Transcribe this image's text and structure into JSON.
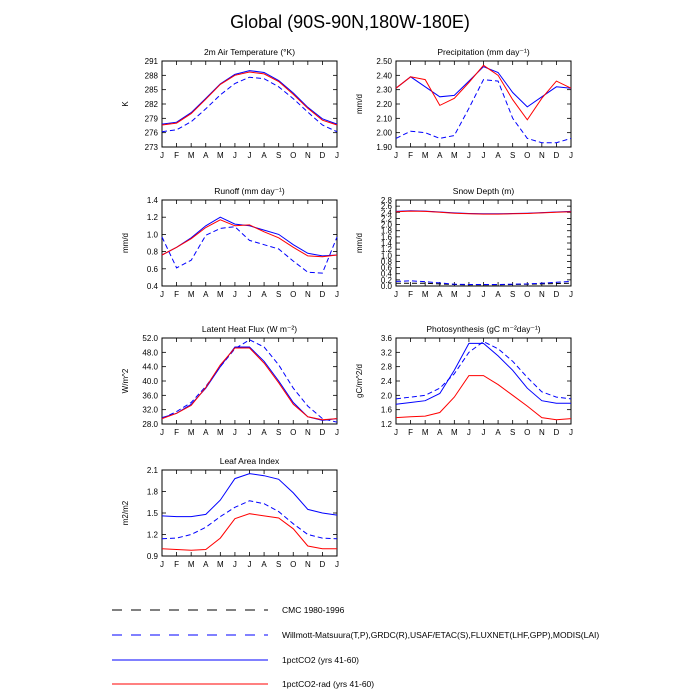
{
  "page": {
    "title": "Global (90S-90N,180W-180E)"
  },
  "months": [
    "J",
    "F",
    "M",
    "A",
    "M",
    "J",
    "J",
    "A",
    "S",
    "O",
    "N",
    "D",
    "J"
  ],
  "series_styles": [
    {
      "name": "CMC 1980-1996",
      "color": "#000000",
      "dash": true
    },
    {
      "name": "Willmott-Matsuura(T,P),GRDC(R),USAF/ETAC(S),FLUXNET(LHF,GPP),MODIS(LAI)",
      "color": "#0000ff",
      "dash": true
    },
    {
      "name": "1pctCO2 (yrs 41-60)",
      "color": "#0000ff",
      "dash": false
    },
    {
      "name": "1pctCO2-rad (yrs 41-60)",
      "color": "#ff0000",
      "dash": false
    }
  ],
  "chart_data": [
    {
      "type": "line",
      "title": "2m Air Temperature (°K)",
      "ylabel": "K",
      "ylim": [
        273,
        291
      ],
      "yticks": [
        "273",
        "276",
        "279",
        "282",
        "285",
        "288",
        "291"
      ],
      "series": [
        {
          "style": 1,
          "values": [
            276.2,
            276.6,
            278.3,
            281.0,
            283.9,
            286.3,
            287.6,
            287.3,
            285.6,
            283.1,
            280.3,
            277.6,
            276.2
          ]
        },
        {
          "style": 2,
          "values": [
            277.8,
            278.2,
            280.2,
            283.2,
            286.2,
            288.2,
            289.0,
            288.6,
            286.9,
            284.3,
            281.3,
            278.9,
            277.8
          ]
        },
        {
          "style": 3,
          "values": [
            277.6,
            278.0,
            280.0,
            283.0,
            286.1,
            288.0,
            288.7,
            288.3,
            286.7,
            284.0,
            281.1,
            278.6,
            277.6
          ]
        }
      ]
    },
    {
      "type": "line",
      "title": "Precipitation (mm day⁻¹)",
      "ylabel": "mm/d",
      "ylim": [
        1.9,
        2.5
      ],
      "yticks": [
        "1.90",
        "2.00",
        "2.10",
        "2.20",
        "2.30",
        "2.40",
        "2.50"
      ],
      "series": [
        {
          "style": 1,
          "values": [
            1.96,
            2.01,
            2.0,
            1.96,
            1.98,
            2.17,
            2.37,
            2.36,
            2.1,
            1.96,
            1.93,
            1.93,
            1.96
          ]
        },
        {
          "style": 2,
          "values": [
            2.31,
            2.39,
            2.32,
            2.25,
            2.26,
            2.36,
            2.46,
            2.42,
            2.28,
            2.18,
            2.25,
            2.32,
            2.31
          ]
        },
        {
          "style": 3,
          "values": [
            2.31,
            2.39,
            2.37,
            2.19,
            2.24,
            2.35,
            2.47,
            2.4,
            2.23,
            2.09,
            2.24,
            2.36,
            2.31
          ]
        }
      ]
    },
    {
      "type": "line",
      "title": "Runoff (mm day⁻¹)",
      "ylabel": "mm/d",
      "ylim": [
        0.4,
        1.4
      ],
      "yticks": [
        "0.4",
        "0.6",
        "0.8",
        "1.0",
        "1.2",
        "1.4"
      ],
      "series": [
        {
          "style": 1,
          "values": [
            0.97,
            0.61,
            0.7,
            0.99,
            1.07,
            1.09,
            0.93,
            0.88,
            0.83,
            0.69,
            0.56,
            0.55,
            0.97
          ]
        },
        {
          "style": 2,
          "values": [
            0.76,
            0.85,
            0.96,
            1.1,
            1.2,
            1.12,
            1.1,
            1.05,
            1.0,
            0.88,
            0.78,
            0.75,
            0.76
          ]
        },
        {
          "style": 3,
          "values": [
            0.76,
            0.85,
            0.95,
            1.08,
            1.17,
            1.1,
            1.11,
            1.03,
            0.96,
            0.85,
            0.75,
            0.74,
            0.76
          ]
        }
      ]
    },
    {
      "type": "line",
      "title": "Snow Depth (m)",
      "ylabel": "mm/d",
      "ylim": [
        0.0,
        2.8
      ],
      "yticks": [
        "0.0",
        "0.2",
        "0.4",
        "0.6",
        "0.8",
        "1.0",
        "1.2",
        "1.4",
        "1.6",
        "1.8",
        "2.0",
        "2.2",
        "2.4",
        "2.6",
        "2.8"
      ],
      "series": [
        {
          "style": 0,
          "values": [
            0.09,
            0.09,
            0.09,
            0.07,
            0.05,
            0.04,
            0.04,
            0.04,
            0.05,
            0.06,
            0.07,
            0.08,
            0.09
          ]
        },
        {
          "style": 1,
          "values": [
            0.15,
            0.17,
            0.14,
            0.1,
            0.06,
            0.05,
            0.05,
            0.05,
            0.06,
            0.07,
            0.09,
            0.12,
            0.15
          ]
        },
        {
          "style": 2,
          "values": [
            2.43,
            2.45,
            2.44,
            2.41,
            2.38,
            2.36,
            2.35,
            2.35,
            2.36,
            2.37,
            2.39,
            2.41,
            2.43
          ]
        },
        {
          "style": 3,
          "values": [
            2.42,
            2.44,
            2.43,
            2.4,
            2.37,
            2.35,
            2.34,
            2.34,
            2.35,
            2.36,
            2.38,
            2.4,
            2.42
          ]
        }
      ]
    },
    {
      "type": "line",
      "title": "Latent Heat Flux (W m⁻²)",
      "ylabel": "W/m^2",
      "ylim": [
        28.0,
        52.0
      ],
      "yticks": [
        "28.0",
        "32.0",
        "36.0",
        "40.0",
        "44.0",
        "48.0",
        "52.0"
      ],
      "series": [
        {
          "style": 1,
          "values": [
            29.5,
            31.5,
            34.0,
            38.5,
            44.0,
            49.0,
            51.5,
            49.5,
            44.5,
            38.0,
            33.0,
            29.5,
            28.5
          ]
        },
        {
          "style": 2,
          "values": [
            29.8,
            31.0,
            33.5,
            38.0,
            44.0,
            49.5,
            49.5,
            45.5,
            40.0,
            34.0,
            30.0,
            29.0,
            29.5
          ]
        },
        {
          "style": 3,
          "values": [
            29.5,
            31.0,
            33.2,
            38.2,
            44.5,
            49.2,
            49.2,
            45.0,
            39.5,
            33.5,
            30.0,
            29.2,
            29.5
          ]
        }
      ]
    },
    {
      "type": "line",
      "title": "Photosynthesis (gC m⁻²day⁻¹)",
      "ylabel": "gC/m^2/d",
      "ylim": [
        1.2,
        3.6
      ],
      "yticks": [
        "1.2",
        "1.6",
        "2.0",
        "2.4",
        "2.8",
        "3.2",
        "3.6"
      ],
      "series": [
        {
          "style": 1,
          "values": [
            1.9,
            1.95,
            2.0,
            2.2,
            2.6,
            3.2,
            3.5,
            3.3,
            2.95,
            2.5,
            2.1,
            1.95,
            1.9
          ]
        },
        {
          "style": 2,
          "values": [
            1.75,
            1.8,
            1.85,
            2.05,
            2.7,
            3.45,
            3.45,
            3.1,
            2.7,
            2.2,
            1.85,
            1.78,
            1.78
          ]
        },
        {
          "style": 3,
          "values": [
            1.38,
            1.4,
            1.42,
            1.52,
            1.95,
            2.55,
            2.55,
            2.3,
            2.0,
            1.7,
            1.38,
            1.32,
            1.35
          ]
        }
      ]
    },
    {
      "type": "line",
      "title": "Leaf Area Index",
      "ylabel": "m2/m2",
      "ylim": [
        0.9,
        2.1
      ],
      "yticks": [
        "0.9",
        "1.2",
        "1.5",
        "1.8",
        "2.1"
      ],
      "series": [
        {
          "style": 1,
          "values": [
            1.14,
            1.15,
            1.2,
            1.3,
            1.45,
            1.58,
            1.67,
            1.63,
            1.52,
            1.35,
            1.2,
            1.15,
            1.14
          ]
        },
        {
          "style": 2,
          "values": [
            1.46,
            1.45,
            1.45,
            1.48,
            1.68,
            1.98,
            2.05,
            2.02,
            1.97,
            1.78,
            1.55,
            1.5,
            1.47
          ]
        },
        {
          "style": 3,
          "values": [
            1.0,
            0.99,
            0.98,
            0.99,
            1.15,
            1.42,
            1.49,
            1.46,
            1.43,
            1.28,
            1.04,
            1.0,
            1.0
          ]
        }
      ]
    }
  ]
}
